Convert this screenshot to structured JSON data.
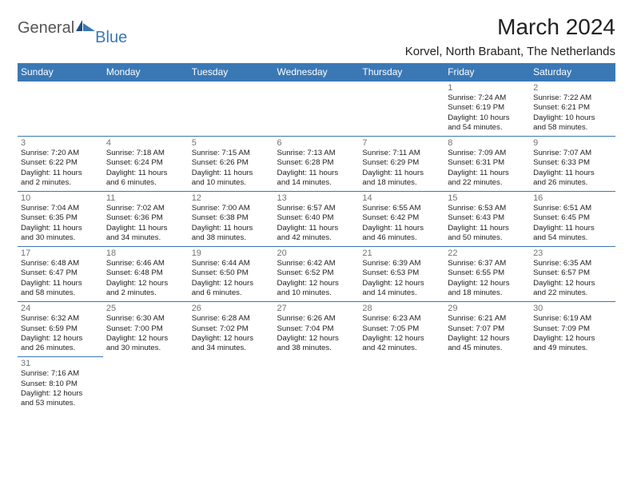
{
  "brand": {
    "a": "General",
    "b": "Blue"
  },
  "title": "March 2024",
  "location": "Korvel, North Brabant, The Netherlands",
  "colors": {
    "accent": "#3a78b5",
    "text": "#222222",
    "daynum": "#747474",
    "bg": "#ffffff"
  },
  "daysOfWeek": [
    "Sunday",
    "Monday",
    "Tuesday",
    "Wednesday",
    "Thursday",
    "Friday",
    "Saturday"
  ],
  "weeks": [
    [
      null,
      null,
      null,
      null,
      null,
      {
        "n": "1",
        "sr": "Sunrise: 7:24 AM",
        "ss": "Sunset: 6:19 PM",
        "d1": "Daylight: 10 hours",
        "d2": "and 54 minutes."
      },
      {
        "n": "2",
        "sr": "Sunrise: 7:22 AM",
        "ss": "Sunset: 6:21 PM",
        "d1": "Daylight: 10 hours",
        "d2": "and 58 minutes."
      }
    ],
    [
      {
        "n": "3",
        "sr": "Sunrise: 7:20 AM",
        "ss": "Sunset: 6:22 PM",
        "d1": "Daylight: 11 hours",
        "d2": "and 2 minutes."
      },
      {
        "n": "4",
        "sr": "Sunrise: 7:18 AM",
        "ss": "Sunset: 6:24 PM",
        "d1": "Daylight: 11 hours",
        "d2": "and 6 minutes."
      },
      {
        "n": "5",
        "sr": "Sunrise: 7:15 AM",
        "ss": "Sunset: 6:26 PM",
        "d1": "Daylight: 11 hours",
        "d2": "and 10 minutes."
      },
      {
        "n": "6",
        "sr": "Sunrise: 7:13 AM",
        "ss": "Sunset: 6:28 PM",
        "d1": "Daylight: 11 hours",
        "d2": "and 14 minutes."
      },
      {
        "n": "7",
        "sr": "Sunrise: 7:11 AM",
        "ss": "Sunset: 6:29 PM",
        "d1": "Daylight: 11 hours",
        "d2": "and 18 minutes."
      },
      {
        "n": "8",
        "sr": "Sunrise: 7:09 AM",
        "ss": "Sunset: 6:31 PM",
        "d1": "Daylight: 11 hours",
        "d2": "and 22 minutes."
      },
      {
        "n": "9",
        "sr": "Sunrise: 7:07 AM",
        "ss": "Sunset: 6:33 PM",
        "d1": "Daylight: 11 hours",
        "d2": "and 26 minutes."
      }
    ],
    [
      {
        "n": "10",
        "sr": "Sunrise: 7:04 AM",
        "ss": "Sunset: 6:35 PM",
        "d1": "Daylight: 11 hours",
        "d2": "and 30 minutes."
      },
      {
        "n": "11",
        "sr": "Sunrise: 7:02 AM",
        "ss": "Sunset: 6:36 PM",
        "d1": "Daylight: 11 hours",
        "d2": "and 34 minutes."
      },
      {
        "n": "12",
        "sr": "Sunrise: 7:00 AM",
        "ss": "Sunset: 6:38 PM",
        "d1": "Daylight: 11 hours",
        "d2": "and 38 minutes."
      },
      {
        "n": "13",
        "sr": "Sunrise: 6:57 AM",
        "ss": "Sunset: 6:40 PM",
        "d1": "Daylight: 11 hours",
        "d2": "and 42 minutes."
      },
      {
        "n": "14",
        "sr": "Sunrise: 6:55 AM",
        "ss": "Sunset: 6:42 PM",
        "d1": "Daylight: 11 hours",
        "d2": "and 46 minutes."
      },
      {
        "n": "15",
        "sr": "Sunrise: 6:53 AM",
        "ss": "Sunset: 6:43 PM",
        "d1": "Daylight: 11 hours",
        "d2": "and 50 minutes."
      },
      {
        "n": "16",
        "sr": "Sunrise: 6:51 AM",
        "ss": "Sunset: 6:45 PM",
        "d1": "Daylight: 11 hours",
        "d2": "and 54 minutes."
      }
    ],
    [
      {
        "n": "17",
        "sr": "Sunrise: 6:48 AM",
        "ss": "Sunset: 6:47 PM",
        "d1": "Daylight: 11 hours",
        "d2": "and 58 minutes."
      },
      {
        "n": "18",
        "sr": "Sunrise: 6:46 AM",
        "ss": "Sunset: 6:48 PM",
        "d1": "Daylight: 12 hours",
        "d2": "and 2 minutes."
      },
      {
        "n": "19",
        "sr": "Sunrise: 6:44 AM",
        "ss": "Sunset: 6:50 PM",
        "d1": "Daylight: 12 hours",
        "d2": "and 6 minutes."
      },
      {
        "n": "20",
        "sr": "Sunrise: 6:42 AM",
        "ss": "Sunset: 6:52 PM",
        "d1": "Daylight: 12 hours",
        "d2": "and 10 minutes."
      },
      {
        "n": "21",
        "sr": "Sunrise: 6:39 AM",
        "ss": "Sunset: 6:53 PM",
        "d1": "Daylight: 12 hours",
        "d2": "and 14 minutes."
      },
      {
        "n": "22",
        "sr": "Sunrise: 6:37 AM",
        "ss": "Sunset: 6:55 PM",
        "d1": "Daylight: 12 hours",
        "d2": "and 18 minutes."
      },
      {
        "n": "23",
        "sr": "Sunrise: 6:35 AM",
        "ss": "Sunset: 6:57 PM",
        "d1": "Daylight: 12 hours",
        "d2": "and 22 minutes."
      }
    ],
    [
      {
        "n": "24",
        "sr": "Sunrise: 6:32 AM",
        "ss": "Sunset: 6:59 PM",
        "d1": "Daylight: 12 hours",
        "d2": "and 26 minutes."
      },
      {
        "n": "25",
        "sr": "Sunrise: 6:30 AM",
        "ss": "Sunset: 7:00 PM",
        "d1": "Daylight: 12 hours",
        "d2": "and 30 minutes."
      },
      {
        "n": "26",
        "sr": "Sunrise: 6:28 AM",
        "ss": "Sunset: 7:02 PM",
        "d1": "Daylight: 12 hours",
        "d2": "and 34 minutes."
      },
      {
        "n": "27",
        "sr": "Sunrise: 6:26 AM",
        "ss": "Sunset: 7:04 PM",
        "d1": "Daylight: 12 hours",
        "d2": "and 38 minutes."
      },
      {
        "n": "28",
        "sr": "Sunrise: 6:23 AM",
        "ss": "Sunset: 7:05 PM",
        "d1": "Daylight: 12 hours",
        "d2": "and 42 minutes."
      },
      {
        "n": "29",
        "sr": "Sunrise: 6:21 AM",
        "ss": "Sunset: 7:07 PM",
        "d1": "Daylight: 12 hours",
        "d2": "and 45 minutes."
      },
      {
        "n": "30",
        "sr": "Sunrise: 6:19 AM",
        "ss": "Sunset: 7:09 PM",
        "d1": "Daylight: 12 hours",
        "d2": "and 49 minutes."
      }
    ],
    [
      {
        "n": "31",
        "sr": "Sunrise: 7:16 AM",
        "ss": "Sunset: 8:10 PM",
        "d1": "Daylight: 12 hours",
        "d2": "and 53 minutes."
      },
      null,
      null,
      null,
      null,
      null,
      null
    ]
  ]
}
